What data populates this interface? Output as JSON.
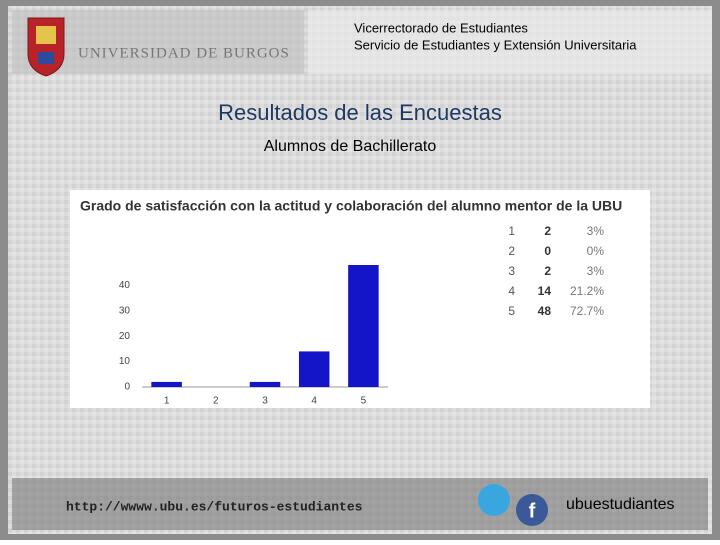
{
  "header": {
    "logo_text": "UNIVERSIDAD DE BURGOS",
    "line1": "Vicerrectorado de Estudiantes",
    "line2": "Servicio de Estudiantes y Extensión Universitaria"
  },
  "title": "Resultados de las Encuestas",
  "subtitle": "Alumnos de Bachillerato",
  "chart_data": {
    "type": "bar",
    "title": "Grado de satisfacción con la actitud y colaboración del alumno mentor de la UBU",
    "categories": [
      "1",
      "2",
      "3",
      "4",
      "5"
    ],
    "values": [
      2,
      0,
      2,
      14,
      48
    ],
    "color": "#1414c8",
    "percent_labels": [
      "3%",
      "0%",
      "3%",
      "21.2%",
      "72.7%"
    ],
    "ylim": [
      0,
      48
    ],
    "yticks": [
      0,
      10,
      20,
      30,
      40
    ],
    "grid": false
  },
  "footer": {
    "url": "http://wwww.ubu.es/futuros-estudiantes",
    "social": "ubuestudiantes"
  }
}
